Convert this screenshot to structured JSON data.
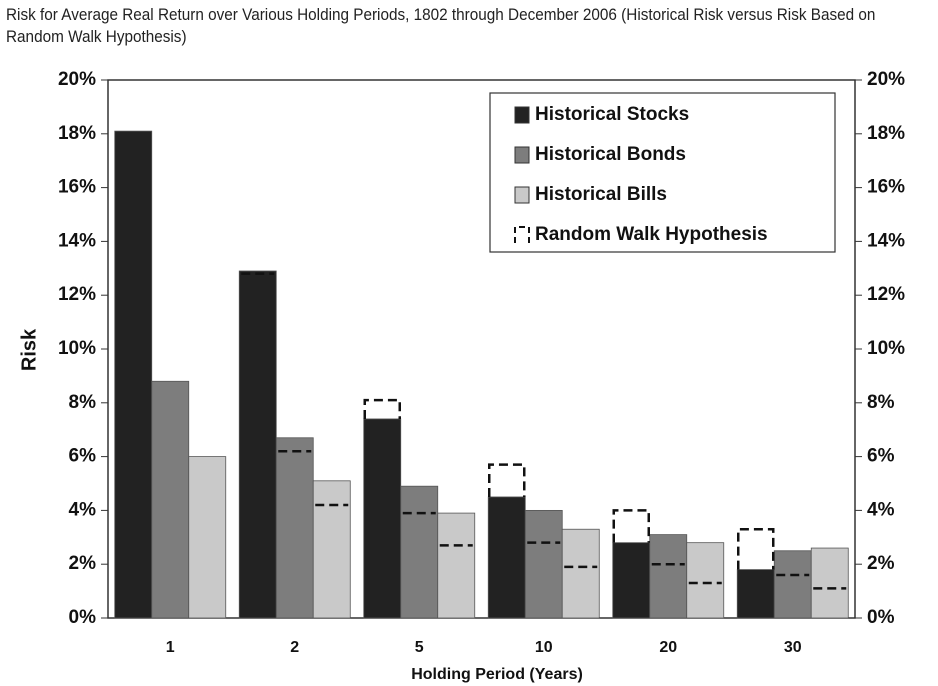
{
  "chart_data": {
    "type": "bar",
    "title": "Risk for Average Real Return over Various Holding Periods, 1802 through December 2006 (Historical Risk versus Risk Based on Random Walk Hypothesis)",
    "x_label": "Holding Period (Years)",
    "y_label": "Risk",
    "categories": [
      "1",
      "2",
      "5",
      "10",
      "20",
      "30"
    ],
    "series": [
      {
        "name": "Historical Stocks",
        "color": "#222222",
        "values": [
          18.1,
          12.9,
          7.4,
          4.5,
          2.8,
          1.8
        ]
      },
      {
        "name": "Historical Bonds",
        "color": "#7d7d7d",
        "values": [
          8.8,
          6.7,
          4.9,
          4.0,
          3.1,
          2.5
        ]
      },
      {
        "name": "Historical Bills",
        "color": "#c9c9c9",
        "values": [
          6.0,
          5.1,
          3.9,
          3.3,
          2.8,
          2.6
        ]
      }
    ],
    "random_walk": {
      "name": "Random Walk Hypothesis",
      "values": [
        [
          null,
          12.8,
          8.1,
          5.7,
          4.0,
          3.3
        ],
        [
          null,
          6.2,
          3.9,
          2.8,
          2.0,
          1.6
        ],
        [
          null,
          4.2,
          2.7,
          1.9,
          1.3,
          1.1
        ]
      ]
    },
    "ylim": [
      0,
      20
    ],
    "yticks": [
      {
        "value": 0,
        "label": "0%"
      },
      {
        "value": 2,
        "label": "2%"
      },
      {
        "value": 4,
        "label": "4%"
      },
      {
        "value": 6,
        "label": "6%"
      },
      {
        "value": 8,
        "label": "8%"
      },
      {
        "value": 10,
        "label": "10%"
      },
      {
        "value": 12,
        "label": "12%"
      },
      {
        "value": 14,
        "label": "14%"
      },
      {
        "value": 16,
        "label": "16%"
      },
      {
        "value": 18,
        "label": "18%"
      },
      {
        "value": 20,
        "label": "20%"
      }
    ],
    "legend": "upper right"
  }
}
